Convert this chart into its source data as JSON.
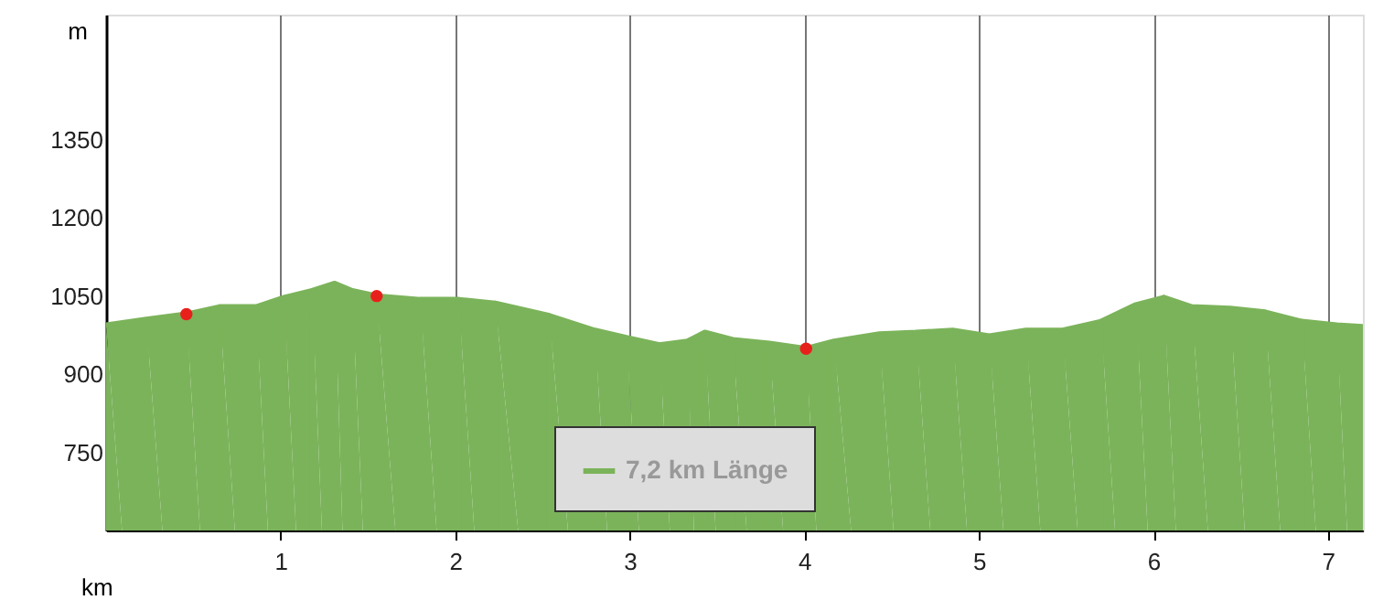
{
  "chart_data": {
    "type": "area",
    "xlabel": "km",
    "ylabel": "m",
    "x": [
      0,
      0.23,
      0.46,
      0.65,
      0.86,
      1.02,
      1.18,
      1.31,
      1.41,
      1.55,
      1.8,
      2.02,
      2.23,
      2.54,
      2.8,
      2.98,
      3.17,
      3.33,
      3.43,
      3.59,
      3.8,
      4.01,
      4.17,
      4.43,
      4.64,
      4.85,
      5.06,
      5.27,
      5.48,
      5.7,
      5.9,
      6.06,
      6.22,
      6.44,
      6.64,
      6.85,
      7.05,
      7.2
    ],
    "series": [
      {
        "name": "7,2 km Länge",
        "color": "#7bb35a",
        "values": [
          994,
          1005,
          1015,
          1029,
          1029,
          1047,
          1060,
          1074,
          1060,
          1050,
          1043,
          1043,
          1036,
          1012,
          984,
          970,
          956,
          963,
          980,
          966,
          959,
          949,
          963,
          977,
          980,
          984,
          973,
          984,
          984,
          1001,
          1033,
          1047,
          1029,
          1026,
          1019,
          1001,
          994,
          991
        ]
      },
      {
        "type": "scatter",
        "marker": "circle",
        "color": "#e8201c",
        "x": [
          0.46,
          1.55,
          4.01
        ],
        "values": [
          1015,
          1050,
          949
        ]
      }
    ],
    "xlim": [
      0,
      7.2
    ],
    "ylim": [
      600,
      1590
    ],
    "xticks": [
      1,
      2,
      3,
      4,
      5,
      6,
      7
    ],
    "yticks": [
      750,
      900,
      1050,
      1200,
      1350
    ],
    "grid": "x",
    "legend": "bottom",
    "line_style": "solid"
  }
}
